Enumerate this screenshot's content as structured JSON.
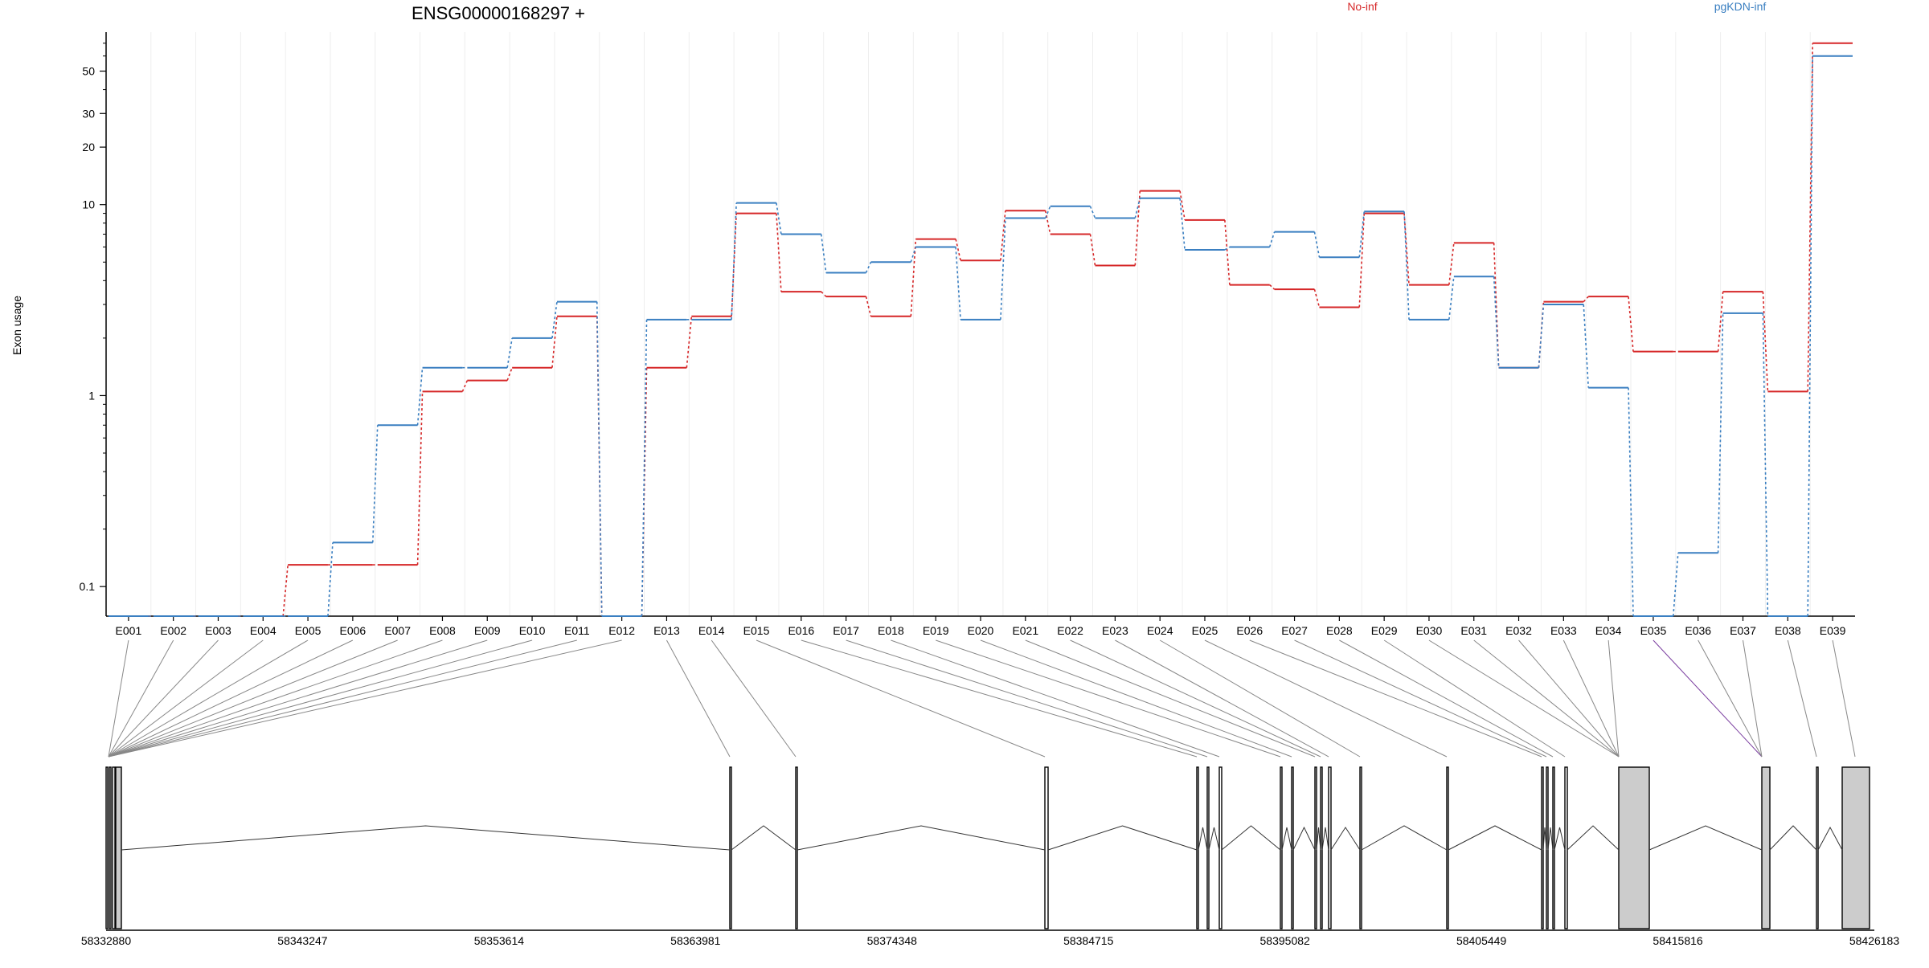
{
  "chart_data": {
    "type": "line",
    "title": "ENSG00000168297 +",
    "ylabel": "Exon usage",
    "xlabel": "",
    "y_scale": "log",
    "ylim": [
      0.07,
      80
    ],
    "y_ticks": [
      "0.1",
      "1",
      "10",
      "20",
      "30",
      "50"
    ],
    "grid": "vertical",
    "legend_placement": "top",
    "colors": {
      "no_inf": "#d62728",
      "pgkdn_inf": "#3a7fc1"
    },
    "categories": [
      "E001",
      "E002",
      "E003",
      "E004",
      "E005",
      "E006",
      "E007",
      "E008",
      "E009",
      "E010",
      "E011",
      "E012",
      "E013",
      "E014",
      "E015",
      "E016",
      "E017",
      "E018",
      "E019",
      "E020",
      "E021",
      "E022",
      "E023",
      "E024",
      "E025",
      "E026",
      "E027",
      "E028",
      "E029",
      "E030",
      "E031",
      "E032",
      "E033",
      "E034",
      "E035",
      "E036",
      "E037",
      "E038",
      "E039"
    ],
    "series": [
      {
        "name": "No-inf",
        "color": "#d62728",
        "values": [
          0.07,
          0.07,
          0.07,
          0.07,
          0.13,
          0.13,
          0.13,
          1.05,
          1.2,
          1.4,
          2.6,
          0.07,
          1.4,
          2.6,
          9.0,
          3.5,
          3.3,
          2.6,
          6.6,
          5.1,
          9.3,
          7.0,
          4.8,
          11.8,
          8.3,
          3.8,
          3.6,
          2.9,
          9.0,
          3.8,
          6.3,
          1.4,
          3.1,
          3.3,
          1.7,
          1.7,
          3.5,
          1.05,
          70
        ]
      },
      {
        "name": "pgKDN-inf",
        "color": "#3a7fc1",
        "values": [
          0.07,
          0.07,
          0.07,
          0.07,
          0.07,
          0.17,
          0.7,
          1.4,
          1.4,
          2.0,
          3.1,
          0.07,
          2.5,
          2.5,
          10.2,
          7.0,
          4.4,
          5.0,
          6.0,
          2.5,
          8.5,
          9.8,
          8.5,
          10.8,
          5.8,
          6.0,
          7.2,
          5.3,
          9.2,
          2.5,
          4.2,
          1.4,
          3.0,
          1.1,
          0.07,
          0.15,
          2.7,
          0.07,
          60
        ]
      }
    ],
    "genomic_ticks": [
      "58332880",
      "58343247",
      "58353614",
      "58363981",
      "58374348",
      "58384715",
      "58395082",
      "58405449",
      "58415816",
      "58426183"
    ]
  }
}
